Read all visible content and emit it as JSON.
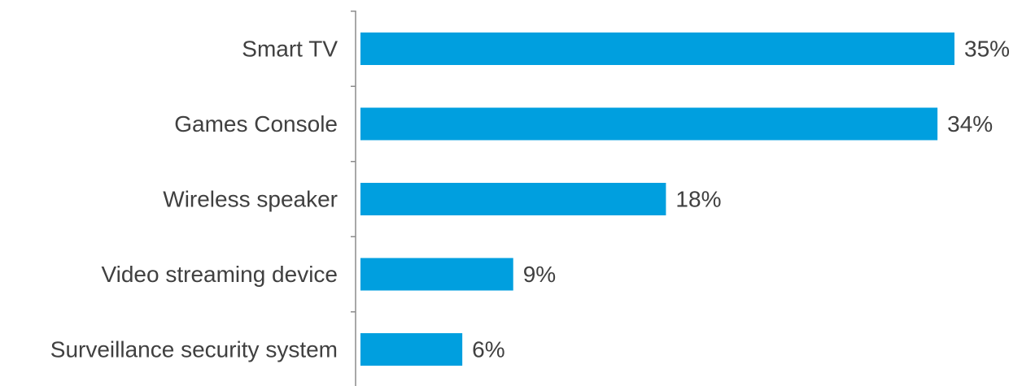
{
  "chart_data": {
    "type": "bar",
    "orientation": "horizontal",
    "title": "",
    "xlabel": "",
    "ylabel": "",
    "categories": [
      "Smart TV",
      "Games Console",
      "Wireless speaker",
      "Video streaming device",
      "Surveillance security system"
    ],
    "values": [
      35,
      34,
      18,
      9,
      6
    ],
    "value_labels": [
      "35%",
      "34%",
      "18%",
      "9%",
      "6%"
    ],
    "unit": "%",
    "xlim": [
      0,
      35
    ],
    "grid": false,
    "legend": "none",
    "colors": {
      "bar": "#009FDF",
      "text": "#404040",
      "axis": "#8C8C8C"
    }
  }
}
